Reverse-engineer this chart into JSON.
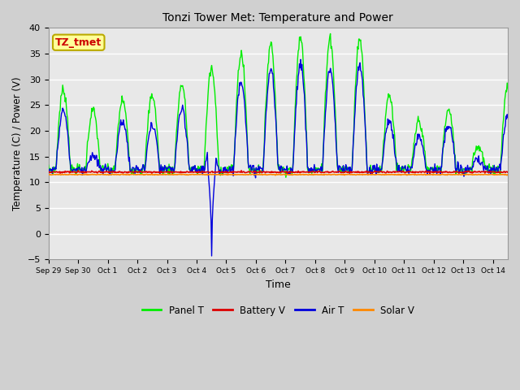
{
  "title": "Tonzi Tower Met: Temperature and Power",
  "xlabel": "Time",
  "ylabel": "Temperature (C) / Power (V)",
  "ylim": [
    -5,
    40
  ],
  "yticks": [
    -5,
    0,
    5,
    10,
    15,
    20,
    25,
    30,
    35,
    40
  ],
  "fig_facecolor": "#d0d0d0",
  "ax_facecolor": "#e8e8e8",
  "grid_color": "#ffffff",
  "annotation_text": "TZ_tmet",
  "annotation_fg": "#cc0000",
  "annotation_bg": "#ffff99",
  "annotation_border": "#bbaa00",
  "legend_labels": [
    "Panel T",
    "Battery V",
    "Air T",
    "Solar V"
  ],
  "legend_colors": [
    "#00ee00",
    "#dd0000",
    "#0000dd",
    "#ff8800"
  ],
  "x_tick_labels": [
    "Sep 29",
    "Sep 30",
    "Oct 1",
    "Oct 2",
    "Oct 3",
    "Oct 4",
    "Oct 5",
    "Oct 6",
    "Oct 7",
    "Oct 8",
    "Oct 9",
    "Oct 10",
    "Oct 11",
    "Oct 12",
    "Oct 13",
    "Oct 14"
  ],
  "panel_peaks": [
    28,
    24,
    26,
    27,
    29,
    32,
    35,
    37,
    38,
    38,
    38,
    27,
    22,
    24,
    17,
    29
  ],
  "air_peaks": [
    24,
    15,
    22,
    21,
    24,
    17,
    30,
    32,
    33,
    32,
    33,
    22,
    19,
    21,
    14,
    23
  ],
  "panel_base": 12.5,
  "air_base": 12.5,
  "battery_mean": 12.0,
  "solar_mean": 11.5,
  "spike_day": 5.5,
  "spike_val": -4.3
}
